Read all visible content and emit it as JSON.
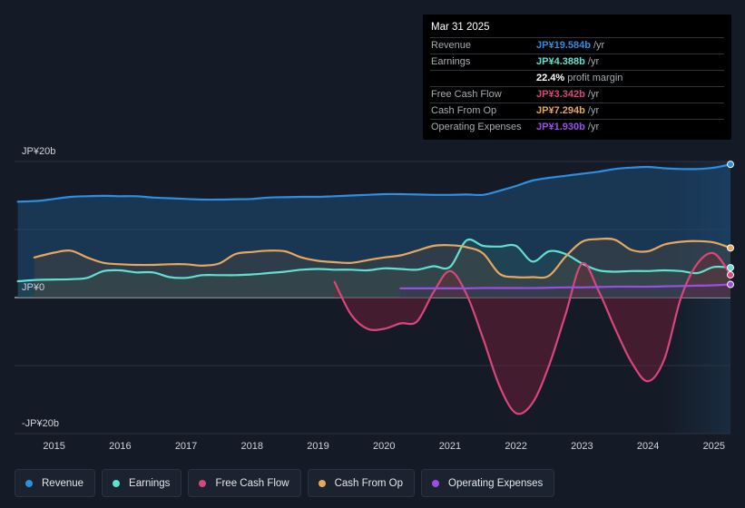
{
  "chart_data": {
    "type": "area",
    "title": "",
    "y_unit_labels": {
      "top": "JP¥20b",
      "zero": "JP¥0",
      "bottom": "-JP¥20b"
    },
    "ylim": [
      -20,
      20
    ],
    "xlim": [
      2014.4,
      2025.25
    ],
    "x_ticks": [
      2015,
      2016,
      2017,
      2018,
      2019,
      2020,
      2021,
      2022,
      2023,
      2024,
      2025
    ],
    "x_tick_labels": [
      "2015",
      "2016",
      "2017",
      "2018",
      "2019",
      "2020",
      "2021",
      "2022",
      "2023",
      "2024",
      "2025"
    ],
    "forecast_start": 2024.25,
    "series": [
      {
        "name": "Revenue",
        "color": "#2d8fe0",
        "points": [
          [
            2014.45,
            14.1
          ],
          [
            2014.75,
            14.2
          ],
          [
            2015.0,
            14.5
          ],
          [
            2015.25,
            14.8
          ],
          [
            2015.5,
            14.9
          ],
          [
            2015.75,
            14.95
          ],
          [
            2016.0,
            14.9
          ],
          [
            2016.25,
            14.9
          ],
          [
            2016.5,
            14.7
          ],
          [
            2016.75,
            14.6
          ],
          [
            2017.0,
            14.5
          ],
          [
            2017.25,
            14.4
          ],
          [
            2017.5,
            14.4
          ],
          [
            2017.75,
            14.45
          ],
          [
            2018.0,
            14.5
          ],
          [
            2018.25,
            14.7
          ],
          [
            2018.5,
            14.75
          ],
          [
            2018.75,
            14.8
          ],
          [
            2019.0,
            14.8
          ],
          [
            2019.25,
            14.9
          ],
          [
            2019.5,
            15.0
          ],
          [
            2019.75,
            15.1
          ],
          [
            2020.0,
            15.2
          ],
          [
            2020.25,
            15.2
          ],
          [
            2020.5,
            15.15
          ],
          [
            2020.75,
            15.1
          ],
          [
            2021.0,
            15.1
          ],
          [
            2021.25,
            15.15
          ],
          [
            2021.5,
            15.1
          ],
          [
            2021.75,
            15.7
          ],
          [
            2022.0,
            16.4
          ],
          [
            2022.25,
            17.2
          ],
          [
            2022.5,
            17.6
          ],
          [
            2022.75,
            17.9
          ],
          [
            2023.0,
            18.2
          ],
          [
            2023.25,
            18.5
          ],
          [
            2023.5,
            18.9
          ],
          [
            2023.75,
            19.1
          ],
          [
            2024.0,
            19.2
          ],
          [
            2024.25,
            19.0
          ],
          [
            2024.5,
            18.9
          ],
          [
            2024.75,
            18.9
          ],
          [
            2025.0,
            19.1
          ],
          [
            2025.25,
            19.58
          ]
        ]
      },
      {
        "name": "Earnings",
        "color": "#5fe0d1",
        "points": [
          [
            2014.45,
            2.4
          ],
          [
            2014.75,
            2.6
          ],
          [
            2015.0,
            2.65
          ],
          [
            2015.25,
            2.7
          ],
          [
            2015.5,
            2.9
          ],
          [
            2015.75,
            3.9
          ],
          [
            2016.0,
            4.0
          ],
          [
            2016.25,
            3.7
          ],
          [
            2016.5,
            3.7
          ],
          [
            2016.75,
            3.0
          ],
          [
            2017.0,
            2.9
          ],
          [
            2017.25,
            3.3
          ],
          [
            2017.5,
            3.3
          ],
          [
            2017.75,
            3.3
          ],
          [
            2018.0,
            3.4
          ],
          [
            2018.25,
            3.6
          ],
          [
            2018.5,
            3.8
          ],
          [
            2018.75,
            4.1
          ],
          [
            2019.0,
            4.2
          ],
          [
            2019.25,
            4.1
          ],
          [
            2019.5,
            4.1
          ],
          [
            2019.75,
            4.0
          ],
          [
            2020.0,
            4.3
          ],
          [
            2020.25,
            4.2
          ],
          [
            2020.5,
            4.1
          ],
          [
            2020.75,
            4.6
          ],
          [
            2021.0,
            4.5
          ],
          [
            2021.25,
            8.4
          ],
          [
            2021.5,
            7.6
          ],
          [
            2021.75,
            7.5
          ],
          [
            2022.0,
            7.6
          ],
          [
            2022.25,
            5.3
          ],
          [
            2022.5,
            6.8
          ],
          [
            2022.75,
            6.4
          ],
          [
            2023.0,
            5.0
          ],
          [
            2023.25,
            4.0
          ],
          [
            2023.5,
            3.8
          ],
          [
            2023.75,
            3.9
          ],
          [
            2024.0,
            3.9
          ],
          [
            2024.25,
            4.0
          ],
          [
            2024.5,
            3.9
          ],
          [
            2024.75,
            3.6
          ],
          [
            2025.0,
            4.5
          ],
          [
            2025.25,
            4.39
          ]
        ]
      },
      {
        "name": "Free Cash Flow",
        "color": "#d8467c",
        "points": [
          [
            2019.25,
            2.3
          ],
          [
            2019.5,
            -2.5
          ],
          [
            2019.75,
            -4.6
          ],
          [
            2020.0,
            -4.6
          ],
          [
            2020.25,
            -3.8
          ],
          [
            2020.5,
            -3.5
          ],
          [
            2020.75,
            0.8
          ],
          [
            2021.0,
            3.9
          ],
          [
            2021.25,
            0.5
          ],
          [
            2021.5,
            -6.0
          ],
          [
            2021.75,
            -13.0
          ],
          [
            2022.0,
            -17.0
          ],
          [
            2022.25,
            -15.5
          ],
          [
            2022.5,
            -10.0
          ],
          [
            2022.75,
            -2.5
          ],
          [
            2023.0,
            5.0
          ],
          [
            2023.25,
            1.0
          ],
          [
            2023.5,
            -4.5
          ],
          [
            2023.75,
            -9.5
          ],
          [
            2024.0,
            -12.3
          ],
          [
            2024.25,
            -9.0
          ],
          [
            2024.5,
            0.0
          ],
          [
            2024.75,
            5.0
          ],
          [
            2025.0,
            6.5
          ],
          [
            2025.25,
            3.34
          ]
        ]
      },
      {
        "name": "Cash From Op",
        "color": "#e8a85c",
        "points": [
          [
            2014.7,
            5.9
          ],
          [
            2015.0,
            6.6
          ],
          [
            2015.25,
            6.9
          ],
          [
            2015.5,
            5.9
          ],
          [
            2015.75,
            5.1
          ],
          [
            2016.0,
            4.9
          ],
          [
            2016.25,
            4.8
          ],
          [
            2016.5,
            4.8
          ],
          [
            2016.75,
            4.9
          ],
          [
            2017.0,
            4.9
          ],
          [
            2017.25,
            4.7
          ],
          [
            2017.5,
            5.0
          ],
          [
            2017.75,
            6.4
          ],
          [
            2018.0,
            6.7
          ],
          [
            2018.25,
            6.9
          ],
          [
            2018.5,
            6.8
          ],
          [
            2018.75,
            5.9
          ],
          [
            2019.0,
            5.4
          ],
          [
            2019.25,
            5.2
          ],
          [
            2019.5,
            5.1
          ],
          [
            2019.75,
            5.5
          ],
          [
            2020.0,
            5.9
          ],
          [
            2020.25,
            6.2
          ],
          [
            2020.5,
            6.9
          ],
          [
            2020.75,
            7.6
          ],
          [
            2021.0,
            7.7
          ],
          [
            2021.25,
            7.4
          ],
          [
            2021.5,
            6.5
          ],
          [
            2021.75,
            3.5
          ],
          [
            2022.0,
            3.0
          ],
          [
            2022.25,
            3.0
          ],
          [
            2022.5,
            3.2
          ],
          [
            2022.75,
            6.0
          ],
          [
            2023.0,
            8.2
          ],
          [
            2023.25,
            8.6
          ],
          [
            2023.5,
            8.5
          ],
          [
            2023.75,
            7.0
          ],
          [
            2024.0,
            6.8
          ],
          [
            2024.25,
            7.8
          ],
          [
            2024.5,
            8.2
          ],
          [
            2024.75,
            8.3
          ],
          [
            2025.0,
            8.1
          ],
          [
            2025.25,
            7.29
          ]
        ]
      },
      {
        "name": "Operating Expenses",
        "color": "#9a4ee8",
        "points": [
          [
            2020.25,
            1.35
          ],
          [
            2020.5,
            1.35
          ],
          [
            2020.75,
            1.35
          ],
          [
            2021.0,
            1.35
          ],
          [
            2021.25,
            1.35
          ],
          [
            2021.5,
            1.4
          ],
          [
            2021.75,
            1.4
          ],
          [
            2022.0,
            1.4
          ],
          [
            2022.25,
            1.4
          ],
          [
            2022.5,
            1.45
          ],
          [
            2022.75,
            1.5
          ],
          [
            2023.0,
            1.5
          ],
          [
            2023.25,
            1.55
          ],
          [
            2023.5,
            1.6
          ],
          [
            2023.75,
            1.6
          ],
          [
            2024.0,
            1.6
          ],
          [
            2024.25,
            1.65
          ],
          [
            2024.5,
            1.7
          ],
          [
            2024.75,
            1.75
          ],
          [
            2025.0,
            1.8
          ],
          [
            2025.25,
            1.93
          ]
        ]
      }
    ]
  },
  "tooltip": {
    "date": "Mar 31 2025",
    "rows": [
      {
        "label": "Revenue",
        "value": "JP¥19.584b",
        "unit": " /yr",
        "color": "#2d8fe0"
      },
      {
        "label": "Earnings",
        "value": "JP¥4.388b",
        "unit": " /yr",
        "color": "#5fe0d1"
      },
      {
        "label": "",
        "value": "22.4%",
        "unit": " profit margin",
        "color": "#ffffff"
      },
      {
        "label": "Free Cash Flow",
        "value": "JP¥3.342b",
        "unit": " /yr",
        "color": "#d8467c"
      },
      {
        "label": "Cash From Op",
        "value": "JP¥7.294b",
        "unit": " /yr",
        "color": "#e8a85c"
      },
      {
        "label": "Operating Expenses",
        "value": "JP¥1.930b",
        "unit": " /yr",
        "color": "#9a4ee8"
      }
    ]
  },
  "legend": [
    {
      "label": "Revenue",
      "color": "#2d8fe0"
    },
    {
      "label": "Earnings",
      "color": "#5fe0d1"
    },
    {
      "label": "Free Cash Flow",
      "color": "#d8467c"
    },
    {
      "label": "Cash From Op",
      "color": "#e8a85c"
    },
    {
      "label": "Operating Expenses",
      "color": "#9a4ee8"
    }
  ]
}
